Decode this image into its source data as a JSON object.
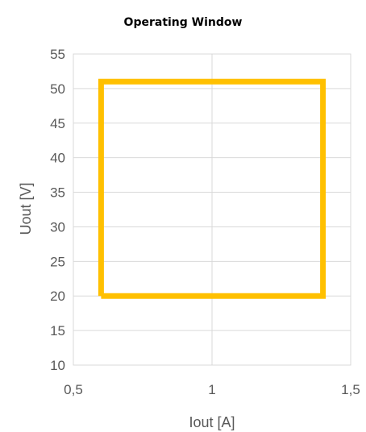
{
  "chart_data": {
    "type": "line",
    "title": "Operating Window",
    "xlabel": "Iout [A]",
    "ylabel": "Uout [V]",
    "xlim": [
      0.5,
      1.5
    ],
    "ylim": [
      10,
      55
    ],
    "x_ticks": [
      0.5,
      1,
      1.5
    ],
    "x_tick_labels": [
      "0,5",
      "1",
      "1,5"
    ],
    "y_ticks": [
      10,
      15,
      20,
      25,
      30,
      35,
      40,
      45,
      50,
      55
    ],
    "y_tick_labels": [
      "10",
      "15",
      "20",
      "25",
      "30",
      "35",
      "40",
      "45",
      "50",
      "55"
    ],
    "grid": true,
    "legend": "none",
    "series": [
      {
        "color": "#FFC000",
        "x": [
          0.6,
          1.4,
          1.4,
          0.6,
          0.6
        ],
        "y": [
          20,
          20,
          51,
          51,
          20
        ]
      }
    ]
  }
}
